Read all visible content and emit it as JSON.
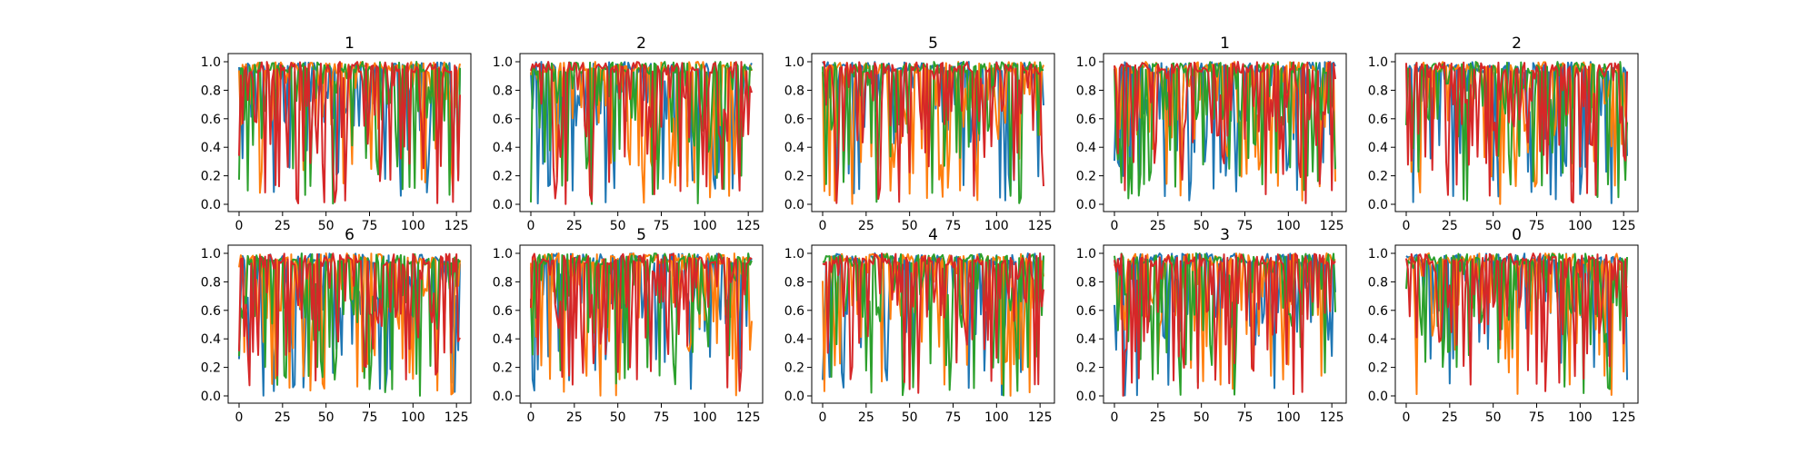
{
  "chart_data": {
    "type": "line",
    "layout": "small-multiples",
    "rows": 2,
    "cols": 5,
    "xlim": [
      0,
      127
    ],
    "ylim": [
      0.0,
      1.0
    ],
    "x_ticks": [
      0,
      25,
      50,
      75,
      100,
      125
    ],
    "y_ticks": [
      0.0,
      0.2,
      0.4,
      0.6,
      0.8,
      1.0
    ],
    "grid": false,
    "legend": "none",
    "series_colors": [
      "#1f77b4",
      "#ff7f0e",
      "#2ca02c",
      "#d62728"
    ],
    "point_count": 128,
    "panels": [
      {
        "title": "1",
        "seed": 11
      },
      {
        "title": "2",
        "seed": 23
      },
      {
        "title": "5",
        "seed": 37
      },
      {
        "title": "1",
        "seed": 41
      },
      {
        "title": "2",
        "seed": 59
      },
      {
        "title": "6",
        "seed": 67
      },
      {
        "title": "5",
        "seed": 73
      },
      {
        "title": "4",
        "seed": 89
      },
      {
        "title": "3",
        "seed": 97
      },
      {
        "title": "0",
        "seed": 101
      }
    ]
  }
}
